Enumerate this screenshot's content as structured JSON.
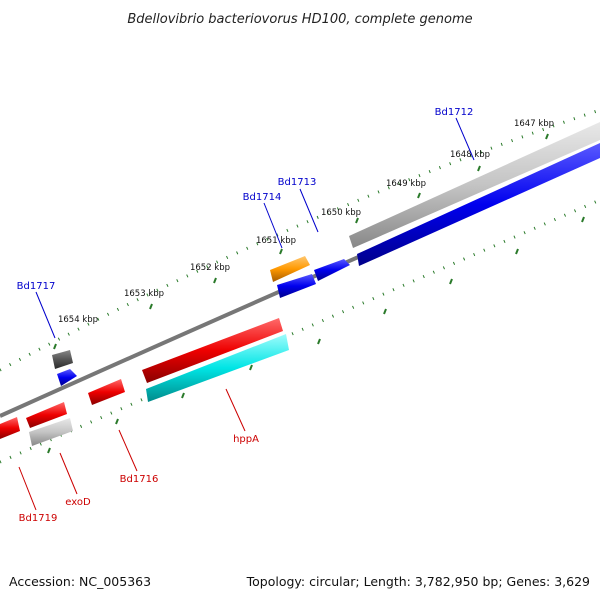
{
  "title": "Bdellovibrio bacteriovorus HD100, complete genome",
  "footer": {
    "accession": "Accession: NC_005363",
    "summary": "Topology: circular; Length: 3,782,950 bp; Genes: 3,629"
  },
  "colors": {
    "forward_label": "#0000cc",
    "reverse_label": "#cc0000",
    "backbone": "#777777",
    "tick": "#2a7a2a",
    "forward_gene": "#0000ee",
    "reverse_gene": "#ee0000",
    "cyan_gene": "#00e5e5",
    "orange_gene": "#ff9900",
    "gray_gene": "#bbbbbb",
    "darkgray_gene": "#555555"
  },
  "scale_labels": [
    "1647 kbp",
    "1648 kbp",
    "1649 kbp",
    "1650 kbp",
    "1651 kbp",
    "1652 kbp",
    "1653 kbp",
    "1654 kbp"
  ],
  "gene_labels": {
    "top": [
      "Bd1712",
      "Bd1713",
      "Bd1714",
      "Bd1717"
    ],
    "bottom": [
      "hppA",
      "Bd1716",
      "exoD",
      "Bd1719"
    ]
  }
}
